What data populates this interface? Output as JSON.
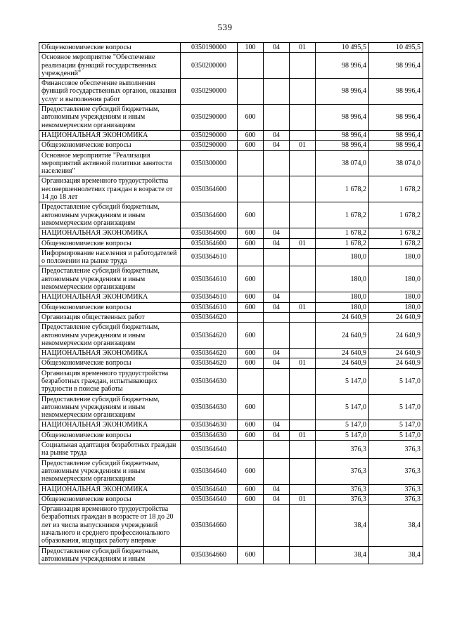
{
  "page": {
    "number": "539"
  },
  "table": {
    "rows": [
      [
        "Общеэкономические вопросы",
        "0350190000",
        "100",
        "04",
        "01",
        "10 495,5",
        "10 495,5"
      ],
      [
        "Основное мероприятие \"Обеспечение реализации функций государственных учреждений\"",
        "0350200000",
        "",
        "",
        "",
        "98 996,4",
        "98 996,4"
      ],
      [
        "Финансовое обеспечение выполнения функций государственных органов, оказания услуг и выполнения работ",
        "0350290000",
        "",
        "",
        "",
        "98 996,4",
        "98 996,4"
      ],
      [
        "Предоставление субсидий бюджетным, автономным учреждениям и иным некоммерческим организациям",
        "0350290000",
        "600",
        "",
        "",
        "98 996,4",
        "98 996,4"
      ],
      [
        "НАЦИОНАЛЬНАЯ ЭКОНОМИКА",
        "0350290000",
        "600",
        "04",
        "",
        "98 996,4",
        "98 996,4"
      ],
      [
        "Общеэкономические вопросы",
        "0350290000",
        "600",
        "04",
        "01",
        "98 996,4",
        "98 996,4"
      ],
      [
        "Основное мероприятие \"Реализация мероприятий активной политики занятости населения\"",
        "0350300000",
        "",
        "",
        "",
        "38 074,0",
        "38 074,0"
      ],
      [
        "Организация временного трудоустройства несовершеннолетних граждан в возрасте от 14 до 18 лет",
        "0350364600",
        "",
        "",
        "",
        "1 678,2",
        "1 678,2"
      ],
      [
        "Предоставление субсидий бюджетным, автономным учреждениям и иным некоммерческим организациям",
        "0350364600",
        "600",
        "",
        "",
        "1 678,2",
        "1 678,2"
      ],
      [
        "НАЦИОНАЛЬНАЯ ЭКОНОМИКА",
        "0350364600",
        "600",
        "04",
        "",
        "1 678,2",
        "1 678,2"
      ],
      [
        "Общеэкономические вопросы",
        "0350364600",
        "600",
        "04",
        "01",
        "1 678,2",
        "1 678,2"
      ],
      [
        "Информирование населения и работодателей о положении на рынке труда",
        "0350364610",
        "",
        "",
        "",
        "180,0",
        "180,0"
      ],
      [
        "Предоставление субсидий бюджетным, автономным учреждениям и иным некоммерческим организациям",
        "0350364610",
        "600",
        "",
        "",
        "180,0",
        "180,0"
      ],
      [
        "НАЦИОНАЛЬНАЯ ЭКОНОМИКА",
        "0350364610",
        "600",
        "04",
        "",
        "180,0",
        "180,0"
      ],
      [
        "Общеэкономические вопросы",
        "0350364610",
        "600",
        "04",
        "01",
        "180,0",
        "180,0"
      ],
      [
        "Организация общественных работ",
        "0350364620",
        "",
        "",
        "",
        "24 640,9",
        "24 640,9"
      ],
      [
        "Предоставление субсидий бюджетным, автономным учреждениям и иным некоммерческим организациям",
        "0350364620",
        "600",
        "",
        "",
        "24 640,9",
        "24 640,9"
      ],
      [
        "НАЦИОНАЛЬНАЯ ЭКОНОМИКА",
        "0350364620",
        "600",
        "04",
        "",
        "24 640,9",
        "24 640,9"
      ],
      [
        "Общеэкономические вопросы",
        "0350364620",
        "600",
        "04",
        "01",
        "24 640,9",
        "24 640,9"
      ],
      [
        "Организация временного трудоустройства безработных граждан, испытывающих трудности в поиске работы",
        "0350364630",
        "",
        "",
        "",
        "5 147,0",
        "5 147,0"
      ],
      [
        "Предоставление субсидий бюджетным, автономным учреждениям и иным некоммерческим организациям",
        "0350364630",
        "600",
        "",
        "",
        "5 147,0",
        "5 147,0"
      ],
      [
        "НАЦИОНАЛЬНАЯ ЭКОНОМИКА",
        "0350364630",
        "600",
        "04",
        "",
        "5 147,0",
        "5 147,0"
      ],
      [
        "Общеэкономические вопросы",
        "0350364630",
        "600",
        "04",
        "01",
        "5 147,0",
        "5 147,0"
      ],
      [
        "Социальная адаптация безработных граждан на рынке труда",
        "0350364640",
        "",
        "",
        "",
        "376,3",
        "376,3"
      ],
      [
        "Предоставление субсидий бюджетным, автономным учреждениям и иным некоммерческим организациям",
        "0350364640",
        "600",
        "",
        "",
        "376,3",
        "376,3"
      ],
      [
        "НАЦИОНАЛЬНАЯ ЭКОНОМИКА",
        "0350364640",
        "600",
        "04",
        "",
        "376,3",
        "376,3"
      ],
      [
        "Общеэкономические вопросы",
        "0350364640",
        "600",
        "04",
        "01",
        "376,3",
        "376,3"
      ],
      [
        "Организация временного трудоустройства безработных граждан в возрасте от 18 до 20 лет из числа выпускников учреждений начального и среднего профессионального образования, ищущих работу впервые",
        "0350364660",
        "",
        "",
        "",
        "38,4",
        "38,4"
      ],
      [
        "Предоставление субсидий бюджетным, автономным учреждениям и иным",
        "0350364660",
        "600",
        "",
        "",
        "38,4",
        "38,4"
      ]
    ]
  }
}
